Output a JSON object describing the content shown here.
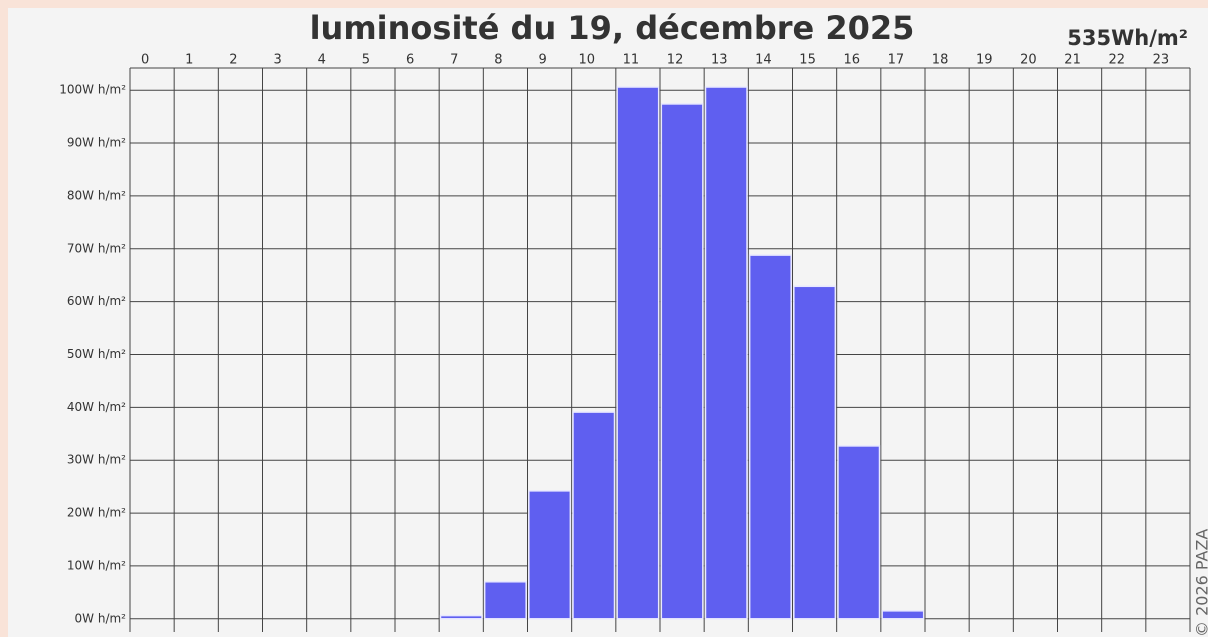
{
  "chart_data": {
    "type": "bar",
    "title": "luminosité du 19, décembre 2025",
    "annotations": [
      "535Wh/m²",
      "© 2026 PAZA"
    ],
    "categories": [
      "0",
      "1",
      "2",
      "3",
      "4",
      "5",
      "6",
      "7",
      "8",
      "9",
      "10",
      "11",
      "12",
      "13",
      "14",
      "15",
      "16",
      "17",
      "18",
      "19",
      "20",
      "21",
      "22",
      "23"
    ],
    "values": [
      0,
      0,
      0,
      0,
      0,
      0,
      0,
      0.6,
      7,
      24.2,
      39.1,
      100.6,
      97.4,
      100.6,
      68.8,
      62.9,
      32.7,
      1.5,
      0,
      0,
      0,
      0,
      0,
      0
    ],
    "color": "#5f5ff0",
    "ylim": [
      -2.5,
      104.2
    ],
    "yticks": [
      {
        "value": 0,
        "label": "0W h/m²"
      },
      {
        "value": 10,
        "label": "10W h/m²"
      },
      {
        "value": 20,
        "label": "20W h/m²"
      },
      {
        "value": 30,
        "label": "30W h/m²"
      },
      {
        "value": 40,
        "label": "40W h/m²"
      },
      {
        "value": 50,
        "label": "50W h/m²"
      },
      {
        "value": 60,
        "label": "60W h/m²"
      },
      {
        "value": 70,
        "label": "70W h/m²"
      },
      {
        "value": 80,
        "label": "80W h/m²"
      },
      {
        "value": 90,
        "label": "90W h/m²"
      },
      {
        "value": 100,
        "label": "100W h/m²"
      }
    ],
    "grid": true
  }
}
